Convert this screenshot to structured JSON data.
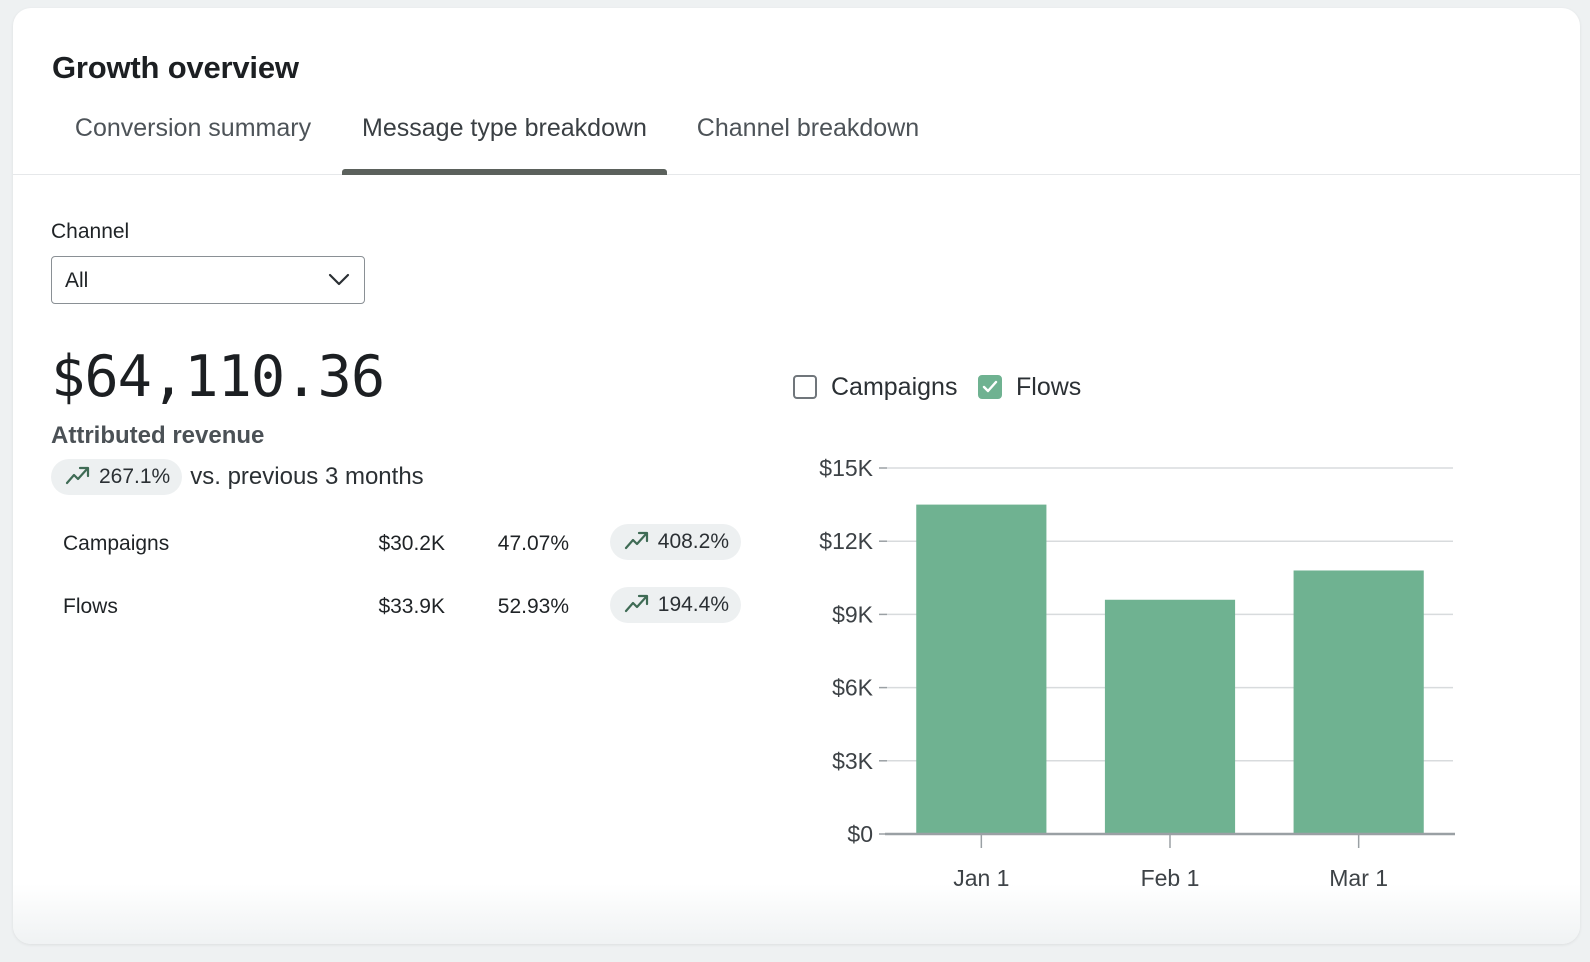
{
  "card": {
    "title": "Growth overview"
  },
  "tabs": [
    {
      "label": "Conversion summary",
      "active": false
    },
    {
      "label": "Message type breakdown",
      "active": true
    },
    {
      "label": "Channel breakdown",
      "active": false
    }
  ],
  "filter": {
    "label": "Channel",
    "selected": "All"
  },
  "summary": {
    "value": "$64,110.36",
    "label": "Attributed revenue",
    "delta": "267.1%",
    "delta_suffix": "vs. previous 3 months"
  },
  "breakdown": [
    {
      "name": "Campaigns",
      "amount": "$30.2K",
      "share": "47.07%",
      "delta": "408.2%"
    },
    {
      "name": "Flows",
      "amount": "$33.9K",
      "share": "52.93%",
      "delta": "194.4%"
    }
  ],
  "legend": [
    {
      "label": "Campaigns",
      "checked": false
    },
    {
      "label": "Flows",
      "checked": true
    }
  ],
  "colors": {
    "accent": "#6fb291",
    "tab_underline": "#5b615c",
    "trend_icon": "#3f6b55"
  },
  "icons": {
    "trend": "trending-up-icon",
    "dropdown": "chevron-down-icon",
    "check": "checkmark-icon"
  },
  "chart_data": {
    "type": "bar",
    "categories": [
      "Jan 1",
      "Feb 1",
      "Mar 1"
    ],
    "series": [
      {
        "name": "Flows",
        "values": [
          13500,
          9600,
          10800
        ]
      }
    ],
    "ylim": [
      0,
      15000
    ],
    "yticks": [
      0,
      3000,
      6000,
      9000,
      12000,
      15000
    ],
    "ytick_labels": [
      "$0",
      "$3K",
      "$6K",
      "$9K",
      "$12K",
      "$15K"
    ],
    "grid": true,
    "color": "#6fb291"
  }
}
